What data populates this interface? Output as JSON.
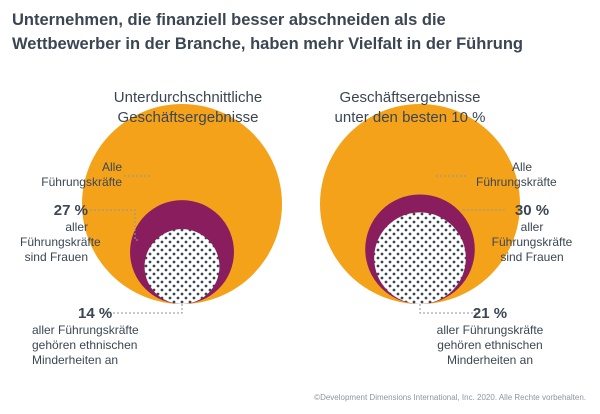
{
  "title_line1": "Unternehmen, die finanziell besser abschneiden als die",
  "title_line2": "Wettbewerber in der Branche, haben mehr Vielfalt in der Führung",
  "colors": {
    "all_leaders": "#f5a21b",
    "women": "#8a1d5e",
    "minorities_dots": "#3b4653",
    "text": "#3b4653"
  },
  "chart_data": [
    {
      "type": "nested-circles",
      "title_line1": "Unterdurchschnittliche",
      "title_line2": "Geschäftsergebnisse",
      "all_leaders_label_line1": "Alle",
      "all_leaders_label_line2": "Führungskräfte",
      "women_value": "27 %",
      "women_pct": 27,
      "women_label_line1": "aller",
      "women_label_line2": "Führungskräfte",
      "women_label_line3": "sind Frauen",
      "minorities_value": "14 %",
      "minorities_pct": 14,
      "minorities_label_line1": "aller Führungskräfte",
      "minorities_label_line2": "gehören ethnischen",
      "minorities_label_line3": "Minderheiten an"
    },
    {
      "type": "nested-circles",
      "title_line1": "Geschäftsergebnisse",
      "title_line2": "unter den besten 10 %",
      "all_leaders_label_line1": "Alle",
      "all_leaders_label_line2": "Führungskräfte",
      "women_value": "30 %",
      "women_pct": 30,
      "women_label_line1": "aller",
      "women_label_line2": "Führungskräfte",
      "women_label_line3": "sind Frauen",
      "minorities_value": "21 %",
      "minorities_pct": 21,
      "minorities_label_line1": "aller Führungskräfte",
      "minorities_label_line2": "gehören ethnischen",
      "minorities_label_line3": "Minderheiten an"
    }
  ],
  "copyright": "©Development Dimensions International, Inc. 2020. Alle Rechte vorbehalten."
}
